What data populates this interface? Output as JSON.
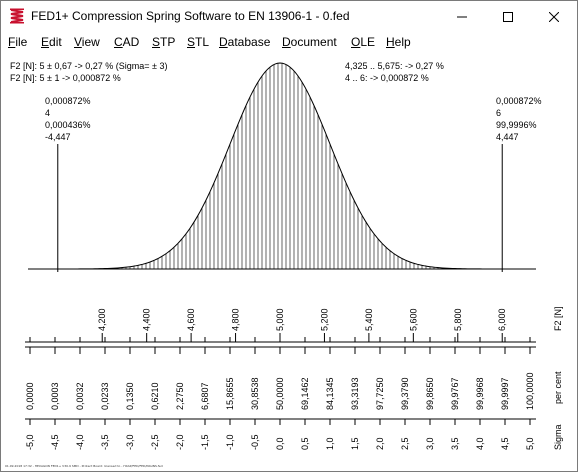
{
  "window": {
    "title": "FED1+  Compression Spring Software to EN 13906-1  -  0.fed",
    "icon": "spring-app-icon",
    "controls": [
      "minimize-icon",
      "maximize-icon",
      "close-icon"
    ]
  },
  "menu": [
    {
      "label": "File",
      "ul": "F",
      "rest": "ile"
    },
    {
      "label": "Edit",
      "ul": "E",
      "rest": "dit"
    },
    {
      "label": "View",
      "ul": "V",
      "rest": "iew"
    },
    {
      "label": "CAD",
      "ul": "C",
      "rest": "AD"
    },
    {
      "label": "STP",
      "ul": "S",
      "rest": "TP"
    },
    {
      "label": "STL",
      "ul": "S",
      "rest": "TL"
    },
    {
      "label": "Database",
      "ul": "D",
      "rest": "atabase"
    },
    {
      "label": "Document",
      "ul": "D",
      "rest": "ocument"
    },
    {
      "label": "OLE",
      "ul": "O",
      "rest": "LE"
    },
    {
      "label": "Help",
      "ul": "H",
      "rest": "elp"
    }
  ],
  "info": {
    "left_line1": "F2 [N]: 5 ± 0,67 -> 0,27 %  (Sigma= ± 3)",
    "left_line2": "F2 [N]: 5 ± 1 -> 0,000872 %",
    "right_line1": "4,325 .. 5,675: -> 0,27 %",
    "right_line2": "4 .. 6: -> 0,000872 %"
  },
  "left_marker": [
    "0,000872%",
    "4",
    "0,000436%",
    "-4,447"
  ],
  "right_marker": [
    "0,000872%",
    "6",
    "99,9996%",
    "4,447"
  ],
  "chart_data": {
    "type": "area",
    "title": "",
    "distribution": "normal",
    "mean": 5,
    "sigma": 0.225,
    "tolerance_limits": [
      4,
      6
    ],
    "xlabel": "F2 [N]",
    "x_ticks": [
      "4,200",
      "4,400",
      "4,600",
      "4,800",
      "5,000",
      "5,200",
      "5,400",
      "5,600",
      "5,800",
      "6,000"
    ],
    "percent_label": "per cent",
    "percent_ticks": [
      "0,0000",
      "0,0003",
      "0,0032",
      "0,0233",
      "0,1350",
      "0,6210",
      "2,2750",
      "6,6807",
      "15,8655",
      "30,8538",
      "50,0000",
      "69,1462",
      "84,1345",
      "93,3193",
      "97,7250",
      "99,3790",
      "99,8650",
      "99,9767",
      "99,9968",
      "99,9997",
      "100,0000"
    ],
    "sigma_label": "Sigma",
    "sigma_ticks": [
      "-5,0",
      "-4,5",
      "-4,0",
      "-3,5",
      "-3,0",
      "-2,5",
      "-2,0",
      "-1,5",
      "-1,0",
      "-0,5",
      "0,0",
      "0,5",
      "1,0",
      "1,5",
      "2,0",
      "2,5",
      "3,0",
      "3,5",
      "4,0",
      "4,5",
      "5,0"
    ]
  },
  "footer": "01.09.2018 17:32 - HEXAGON FED1+ V30.9 SMD - Protect Board: licensed to - HXAP/FED/FED/INGINS.fed"
}
